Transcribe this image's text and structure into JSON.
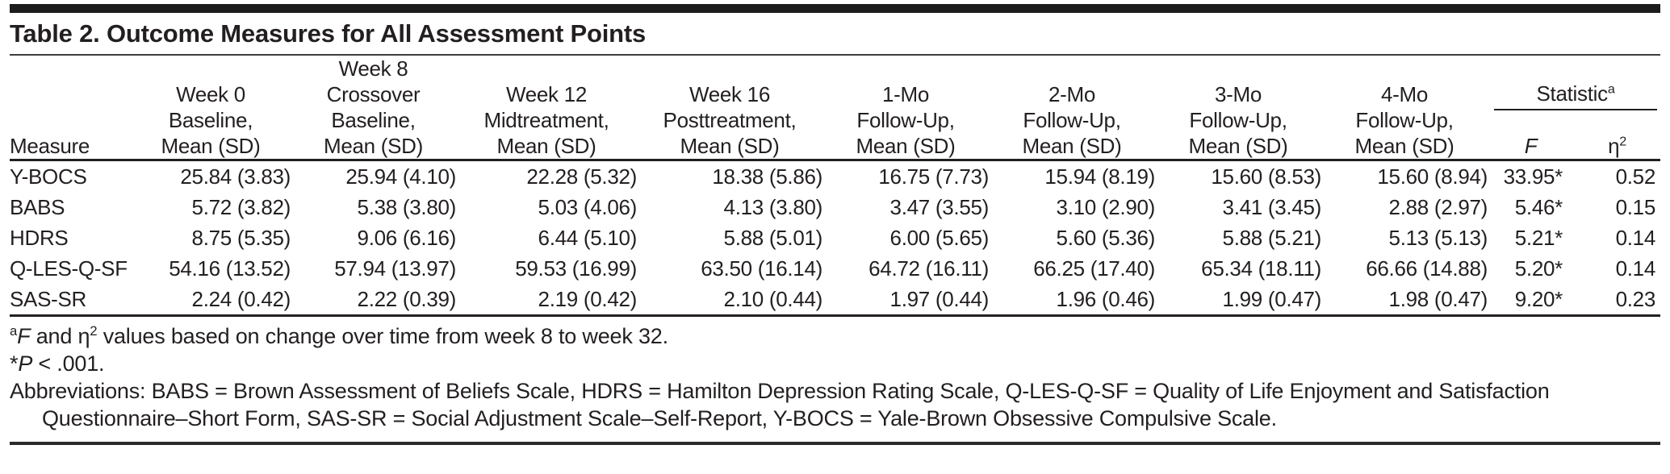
{
  "title": "Table 2. Outcome Measures for All Assessment Points",
  "table": {
    "measure_header": "Measure",
    "columns": [
      {
        "id": "week0-baseline",
        "css": "col-w0",
        "lines": [
          "Week 0",
          "Baseline,",
          "Mean (SD)"
        ]
      },
      {
        "id": "week8-crossover",
        "css": "col-w8",
        "lines": [
          "Week 8",
          "Crossover",
          "Baseline,",
          "Mean (SD)"
        ]
      },
      {
        "id": "week12-midtreatment",
        "css": "col-w12",
        "lines": [
          "Week 12",
          "Midtreatment,",
          "Mean (SD)"
        ]
      },
      {
        "id": "week16-posttreatment",
        "css": "col-w16",
        "lines": [
          "Week 16",
          "Posttreatment,",
          "Mean (SD)"
        ]
      },
      {
        "id": "followup-1mo",
        "css": "col-fu",
        "lines": [
          "1-Mo",
          "Follow-Up,",
          "Mean (SD)"
        ]
      },
      {
        "id": "followup-2mo",
        "css": "col-fu",
        "lines": [
          "2-Mo",
          "Follow-Up,",
          "Mean (SD)"
        ]
      },
      {
        "id": "followup-3mo",
        "css": "col-fu",
        "lines": [
          "3-Mo",
          "Follow-Up,",
          "Mean (SD)"
        ]
      },
      {
        "id": "followup-4mo",
        "css": "col-fu",
        "lines": [
          "4-Mo",
          "Follow-Up,",
          "Mean (SD)"
        ]
      }
    ],
    "statistic": {
      "label": "Statistic",
      "sup": "a",
      "f_label": "F",
      "eta_label": "η",
      "eta_sup": "2"
    },
    "rows": [
      {
        "measure": "Y-BOCS",
        "values": [
          "25.84 (3.83)",
          "25.94 (4.10)",
          "22.28 (5.32)",
          "18.38 (5.86)",
          "16.75 (7.73)",
          "15.94 (8.19)",
          "15.60 (8.53)",
          "15.60 (8.94)"
        ],
        "f": "33.95*",
        "eta2": "0.52"
      },
      {
        "measure": "BABS",
        "values": [
          "5.72 (3.82)",
          "5.38 (3.80)",
          "5.03 (4.06)",
          "4.13 (3.80)",
          "3.47 (3.55)",
          "3.10 (2.90)",
          "3.41 (3.45)",
          "2.88 (2.97)"
        ],
        "f": "5.46*",
        "eta2": "0.15"
      },
      {
        "measure": "HDRS",
        "values": [
          "8.75 (5.35)",
          "9.06 (6.16)",
          "6.44 (5.10)",
          "5.88 (5.01)",
          "6.00 (5.65)",
          "5.60 (5.36)",
          "5.88 (5.21)",
          "5.13 (5.13)"
        ],
        "f": "5.21*",
        "eta2": "0.14"
      },
      {
        "measure": "Q-LES-Q-SF",
        "values": [
          "54.16 (13.52)",
          "57.94 (13.97)",
          "59.53 (16.99)",
          "63.50 (16.14)",
          "64.72 (16.11)",
          "66.25 (17.40)",
          "65.34 (18.11)",
          "66.66 (14.88)"
        ],
        "f": "5.20*",
        "eta2": "0.14"
      },
      {
        "measure": "SAS-SR",
        "values": [
          "2.24 (0.42)",
          "2.22 (0.39)",
          "2.19 (0.42)",
          "2.10 (0.44)",
          "1.97 (0.44)",
          "1.96 (0.46)",
          "1.99 (0.47)",
          "1.98 (0.47)"
        ],
        "f": "9.20*",
        "eta2": "0.23"
      }
    ]
  },
  "footnotes": {
    "stat": {
      "sup": "a",
      "f": "F",
      "mid": " and η",
      "sup2": "2",
      "rest": " values based on change over time from week 8 to week 32."
    },
    "sig": {
      "star": "*",
      "p": "P",
      "rest": " < .001."
    },
    "abbreviations": "Abbreviations: BABS = Brown Assessment of Beliefs Scale, HDRS = Hamilton Depression Rating Scale, Q-LES-Q-SF = Quality of Life Enjoyment and Satisfaction Questionnaire–Short Form, SAS-SR = Social Adjustment Scale–Self-Report, Y-BOCS = Yale-Brown Obsessive Compulsive Scale."
  },
  "colors": {
    "text": "#231f20",
    "rule": "#231f20",
    "top_bar": "#1c1c1c",
    "background": "#ffffff"
  }
}
